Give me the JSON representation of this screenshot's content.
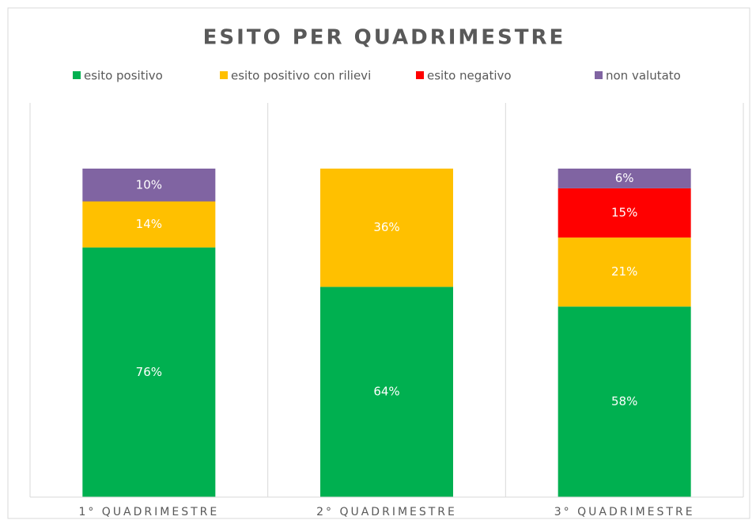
{
  "chart_data": {
    "type": "stacked_bar",
    "title": "ESITO PER QUADRIMESTRE",
    "categories": [
      "1° QUADRIMESTRE",
      "2° QUADRIMESTRE",
      "3° QUADRIMESTRE"
    ],
    "series": [
      {
        "name": "esito positivo",
        "color": "#00b050",
        "values": [
          76,
          64,
          58
        ],
        "value_labels": [
          "76%",
          "64%",
          "58%"
        ]
      },
      {
        "name": "esito positivo con rilievi",
        "color": "#ffc000",
        "values": [
          14,
          36,
          21
        ],
        "value_labels": [
          "14%",
          "36%",
          "21%"
        ]
      },
      {
        "name": "esito negativo",
        "color": "#ff0000",
        "values": [
          0,
          0,
          15
        ],
        "value_labels": [
          null,
          null,
          "15%"
        ]
      },
      {
        "name": "non valutato",
        "color": "#8064a2",
        "values": [
          10,
          0,
          6
        ],
        "value_labels": [
          "10%",
          null,
          "6%"
        ]
      }
    ],
    "ylim": [
      0,
      120
    ],
    "legend": "top"
  }
}
